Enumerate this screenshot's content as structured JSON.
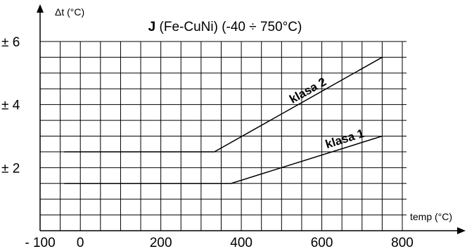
{
  "chart_data": {
    "type": "line",
    "title_bold": "J",
    "title_rest": " (Fe-CuNi) (-40 ÷ 750°C)",
    "xlabel": "temp (°C)",
    "ylabel": "Δt (°C)",
    "xlim": [
      -100,
      800
    ],
    "ylim": [
      0,
      6
    ],
    "x_ticks": [
      {
        "value": -100,
        "label": "- 100"
      },
      {
        "value": 0,
        "label": "0"
      },
      {
        "value": 200,
        "label": "200"
      },
      {
        "value": 400,
        "label": "400"
      },
      {
        "value": 600,
        "label": "600"
      },
      {
        "value": 800,
        "label": "800"
      }
    ],
    "y_ticks": [
      {
        "value": 2,
        "label": "± 2"
      },
      {
        "value": 4,
        "label": "± 4"
      },
      {
        "value": 6,
        "label": "± 6"
      }
    ],
    "grid": true,
    "series": [
      {
        "name": "klasa 2",
        "x": [
          -40,
          333,
          750
        ],
        "y": [
          2.5,
          2.5,
          5.5
        ]
      },
      {
        "name": "klasa 1",
        "x": [
          -40,
          375,
          750
        ],
        "y": [
          1.5,
          1.5,
          3.0
        ]
      }
    ]
  }
}
